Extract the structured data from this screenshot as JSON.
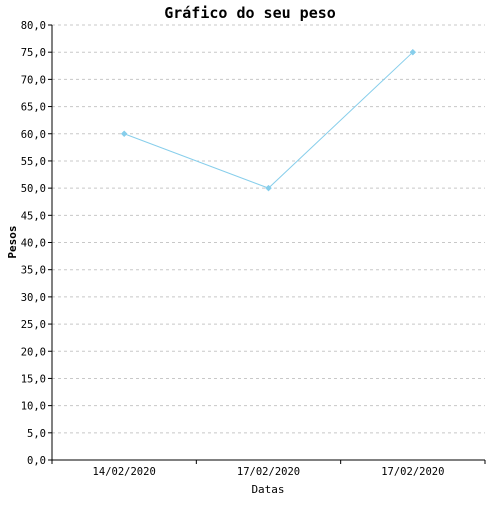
{
  "chart_data": {
    "type": "line",
    "title": "Gráfico do seu peso",
    "xlabel": "Datas",
    "ylabel": "Pesos",
    "categories": [
      "14/02/2020",
      "17/02/2020",
      "17/02/2020"
    ],
    "series": [
      {
        "values": [
          60,
          50,
          75
        ]
      }
    ],
    "ylim": [
      0,
      80
    ],
    "ystep": 5,
    "y_tick_labels": [
      "0,0",
      "5,0",
      "10,0",
      "15,0",
      "20,0",
      "25,0",
      "30,0",
      "35,0",
      "40,0",
      "45,0",
      "50,0",
      "55,0",
      "60,0",
      "65,0",
      "70,0",
      "75,0",
      "80,0"
    ],
    "grid": true,
    "line_color": "#87ceeb",
    "grid_color": "#c8c8c8"
  }
}
